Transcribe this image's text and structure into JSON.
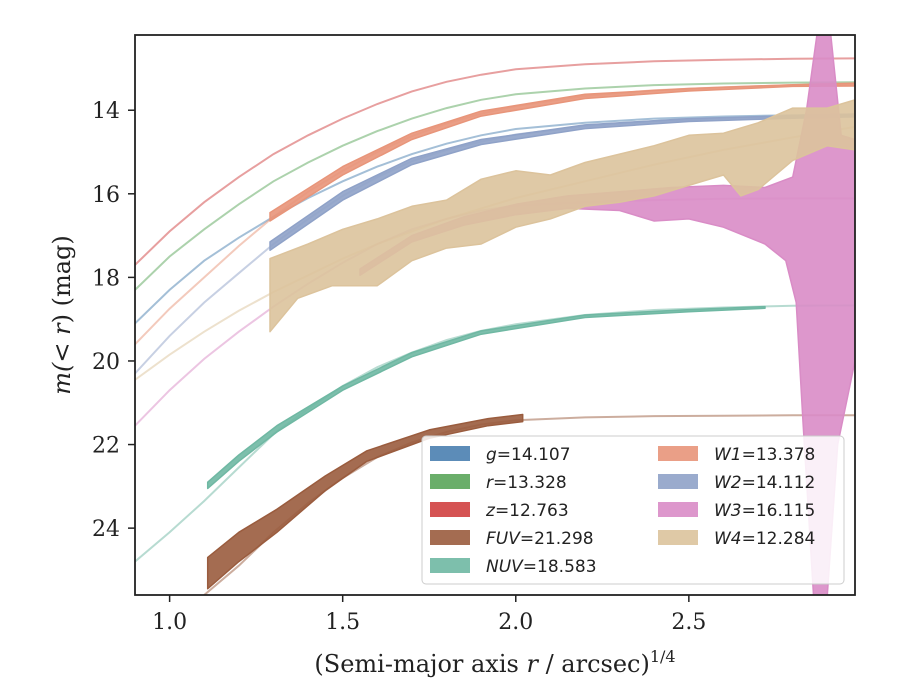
{
  "chart_data": {
    "type": "area",
    "xlabel_prefix": "(Semi-major axis ",
    "xlabel_var": "r",
    "xlabel_suffix": " / arcsec)",
    "xlabel_exp": "1/4",
    "ylabel_prefix": "m(< ",
    "ylabel_var": "r",
    "ylabel_suffix": ") (mag)",
    "xlim": [
      0.9,
      2.98
    ],
    "ylim": [
      25.6,
      12.2
    ],
    "y_inverted": true,
    "xticks": [
      1.0,
      1.5,
      2.0,
      2.5
    ],
    "xtick_labels": [
      "1.0",
      "1.5",
      "2.0",
      "2.5"
    ],
    "yticks": [
      14,
      16,
      18,
      20,
      22,
      24
    ],
    "ytick_labels": [
      "14",
      "16",
      "18",
      "20",
      "22",
      "24"
    ],
    "legend_position": "lower-right",
    "series": [
      {
        "band": "g",
        "value": "14.107",
        "color": "#4a7fb0",
        "faint": [
          [
            0.9,
            19.1
          ],
          [
            1.0,
            18.3
          ],
          [
            1.1,
            17.6
          ],
          [
            1.2,
            17.05
          ],
          [
            1.3,
            16.55
          ],
          [
            1.4,
            16.1
          ],
          [
            1.5,
            15.7
          ],
          [
            1.6,
            15.35
          ],
          [
            1.7,
            15.05
          ],
          [
            1.8,
            14.8
          ],
          [
            1.9,
            14.6
          ],
          [
            2.0,
            14.45
          ],
          [
            2.2,
            14.3
          ],
          [
            2.4,
            14.2
          ],
          [
            2.6,
            14.15
          ],
          [
            2.8,
            14.12
          ],
          [
            2.98,
            14.1
          ]
        ],
        "band_upper": [],
        "band_lower": []
      },
      {
        "band": "r",
        "value": "13.328",
        "color": "#5aa55a",
        "faint": [
          [
            0.9,
            18.3
          ],
          [
            1.0,
            17.5
          ],
          [
            1.1,
            16.85
          ],
          [
            1.2,
            16.25
          ],
          [
            1.3,
            15.7
          ],
          [
            1.4,
            15.25
          ],
          [
            1.5,
            14.85
          ],
          [
            1.6,
            14.5
          ],
          [
            1.7,
            14.2
          ],
          [
            1.8,
            13.95
          ],
          [
            1.9,
            13.75
          ],
          [
            2.0,
            13.62
          ],
          [
            2.2,
            13.48
          ],
          [
            2.4,
            13.4
          ],
          [
            2.6,
            13.36
          ],
          [
            2.8,
            13.34
          ],
          [
            2.98,
            13.33
          ]
        ],
        "band_upper": [],
        "band_lower": []
      },
      {
        "band": "z",
        "value": "12.763",
        "color": "#d04040",
        "faint": [
          [
            0.9,
            17.7
          ],
          [
            1.0,
            16.9
          ],
          [
            1.1,
            16.2
          ],
          [
            1.2,
            15.6
          ],
          [
            1.3,
            15.05
          ],
          [
            1.4,
            14.6
          ],
          [
            1.5,
            14.2
          ],
          [
            1.6,
            13.85
          ],
          [
            1.7,
            13.55
          ],
          [
            1.8,
            13.32
          ],
          [
            1.9,
            13.15
          ],
          [
            2.0,
            13.02
          ],
          [
            2.2,
            12.9
          ],
          [
            2.4,
            12.83
          ],
          [
            2.6,
            12.79
          ],
          [
            2.8,
            12.77
          ],
          [
            2.98,
            12.76
          ]
        ],
        "band_upper": [],
        "band_lower": []
      },
      {
        "band": "FUV",
        "value": "21.298",
        "color": "#9a5c3e",
        "faint": [
          [
            0.9,
            26.8
          ],
          [
            1.0,
            26.2
          ],
          [
            1.1,
            25.6
          ],
          [
            1.2,
            24.9
          ],
          [
            1.3,
            24.1
          ],
          [
            1.4,
            23.4
          ],
          [
            1.5,
            22.8
          ],
          [
            1.6,
            22.3
          ],
          [
            1.7,
            21.95
          ],
          [
            1.8,
            21.7
          ],
          [
            1.9,
            21.52
          ],
          [
            2.0,
            21.42
          ],
          [
            2.2,
            21.35
          ],
          [
            2.4,
            21.32
          ],
          [
            2.6,
            21.31
          ],
          [
            2.8,
            21.3
          ],
          [
            2.98,
            21.3
          ]
        ],
        "band_upper": [
          [
            1.11,
            24.7
          ],
          [
            1.2,
            24.1
          ],
          [
            1.31,
            23.55
          ],
          [
            1.45,
            22.75
          ],
          [
            1.57,
            22.15
          ],
          [
            1.75,
            21.65
          ],
          [
            1.92,
            21.38
          ],
          [
            2.02,
            21.28
          ]
        ],
        "band_lower": [
          [
            1.11,
            25.45
          ],
          [
            1.2,
            24.8
          ],
          [
            1.31,
            24.1
          ],
          [
            1.45,
            23.1
          ],
          [
            1.57,
            22.4
          ],
          [
            1.75,
            21.85
          ],
          [
            1.92,
            21.55
          ],
          [
            2.02,
            21.45
          ]
        ]
      },
      {
        "band": "NUV",
        "value": "18.583",
        "color": "#6fb8a3",
        "faint": [
          [
            0.9,
            24.8
          ],
          [
            1.0,
            24.1
          ],
          [
            1.1,
            23.35
          ],
          [
            1.2,
            22.55
          ],
          [
            1.3,
            21.75
          ],
          [
            1.4,
            21.15
          ],
          [
            1.5,
            20.6
          ],
          [
            1.6,
            20.15
          ],
          [
            1.7,
            19.8
          ],
          [
            1.8,
            19.5
          ],
          [
            1.9,
            19.28
          ],
          [
            2.0,
            19.12
          ],
          [
            2.2,
            18.9
          ],
          [
            2.4,
            18.78
          ],
          [
            2.6,
            18.72
          ],
          [
            2.8,
            18.68
          ],
          [
            2.98,
            18.67
          ]
        ],
        "band_upper": [
          [
            1.11,
            22.9
          ],
          [
            1.2,
            22.25
          ],
          [
            1.31,
            21.55
          ],
          [
            1.5,
            20.6
          ],
          [
            1.7,
            19.8
          ],
          [
            1.9,
            19.28
          ],
          [
            2.2,
            18.9
          ],
          [
            2.5,
            18.77
          ],
          [
            2.72,
            18.7
          ]
        ],
        "band_lower": [
          [
            1.11,
            23.05
          ],
          [
            1.2,
            22.4
          ],
          [
            1.31,
            21.7
          ],
          [
            1.5,
            20.7
          ],
          [
            1.7,
            19.9
          ],
          [
            1.9,
            19.36
          ],
          [
            2.2,
            18.96
          ],
          [
            2.5,
            18.82
          ],
          [
            2.72,
            18.74
          ]
        ]
      },
      {
        "band": "W1",
        "value": "13.378",
        "color": "#e8957a",
        "faint": [
          [
            0.9,
            19.6
          ],
          [
            1.0,
            18.75
          ],
          [
            1.1,
            18.0
          ],
          [
            1.2,
            17.25
          ],
          [
            1.3,
            16.55
          ],
          [
            1.4,
            15.95
          ],
          [
            1.5,
            15.45
          ],
          [
            1.6,
            15.0
          ],
          [
            1.7,
            14.62
          ],
          [
            1.8,
            14.32
          ],
          [
            1.9,
            14.08
          ],
          [
            2.0,
            13.9
          ],
          [
            2.2,
            13.66
          ],
          [
            2.4,
            13.52
          ],
          [
            2.6,
            13.45
          ],
          [
            2.8,
            13.4
          ],
          [
            2.98,
            13.38
          ]
        ],
        "band_upper": [
          [
            1.29,
            16.45
          ],
          [
            1.5,
            15.35
          ],
          [
            1.7,
            14.55
          ],
          [
            1.9,
            14.02
          ],
          [
            2.2,
            13.62
          ],
          [
            2.5,
            13.48
          ],
          [
            2.8,
            13.39
          ],
          [
            2.98,
            13.35
          ]
        ],
        "band_lower": [
          [
            1.29,
            16.65
          ],
          [
            1.5,
            15.55
          ],
          [
            1.7,
            14.7
          ],
          [
            1.9,
            14.14
          ],
          [
            2.2,
            13.72
          ],
          [
            2.5,
            13.54
          ],
          [
            2.8,
            13.43
          ],
          [
            2.98,
            13.42
          ]
        ]
      },
      {
        "band": "W2",
        "value": "14.112",
        "color": "#8fa2c8",
        "faint": [
          [
            0.9,
            20.3
          ],
          [
            1.0,
            19.4
          ],
          [
            1.1,
            18.6
          ],
          [
            1.2,
            17.9
          ],
          [
            1.3,
            17.2
          ],
          [
            1.4,
            16.6
          ],
          [
            1.5,
            16.05
          ],
          [
            1.6,
            15.6
          ],
          [
            1.7,
            15.22
          ],
          [
            1.8,
            14.95
          ],
          [
            1.9,
            14.75
          ],
          [
            2.0,
            14.58
          ],
          [
            2.2,
            14.38
          ],
          [
            2.4,
            14.26
          ],
          [
            2.6,
            14.19
          ],
          [
            2.8,
            14.15
          ],
          [
            2.98,
            14.12
          ]
        ],
        "band_upper": [
          [
            1.29,
            17.15
          ],
          [
            1.5,
            15.95
          ],
          [
            1.7,
            15.15
          ],
          [
            1.9,
            14.7
          ],
          [
            2.2,
            14.35
          ],
          [
            2.5,
            14.2
          ],
          [
            2.8,
            14.13
          ],
          [
            2.98,
            14.09
          ]
        ],
        "band_lower": [
          [
            1.29,
            17.35
          ],
          [
            1.5,
            16.15
          ],
          [
            1.7,
            15.3
          ],
          [
            1.9,
            14.82
          ],
          [
            2.2,
            14.44
          ],
          [
            2.5,
            14.27
          ],
          [
            2.8,
            14.19
          ],
          [
            2.98,
            14.16
          ]
        ]
      },
      {
        "band": "W3",
        "value": "16.115",
        "color": "#d98cc6",
        "faint": [
          [
            0.9,
            21.55
          ],
          [
            1.0,
            20.7
          ],
          [
            1.1,
            19.95
          ],
          [
            1.2,
            19.3
          ],
          [
            1.3,
            18.7
          ],
          [
            1.4,
            18.15
          ],
          [
            1.5,
            17.65
          ],
          [
            1.6,
            17.2
          ],
          [
            1.7,
            16.85
          ],
          [
            1.8,
            16.6
          ],
          [
            1.9,
            16.4
          ],
          [
            2.0,
            16.28
          ],
          [
            2.2,
            16.2
          ],
          [
            2.4,
            16.15
          ],
          [
            2.6,
            16.12
          ],
          [
            2.8,
            16.11
          ],
          [
            2.98,
            16.11
          ]
        ],
        "band_upper": [
          [
            1.55,
            17.8
          ],
          [
            1.7,
            17.0
          ],
          [
            1.85,
            16.55
          ],
          [
            2.0,
            16.25
          ],
          [
            2.15,
            16.05
          ],
          [
            2.3,
            15.95
          ],
          [
            2.45,
            15.85
          ],
          [
            2.6,
            15.8
          ],
          [
            2.72,
            15.85
          ],
          [
            2.8,
            15.6
          ],
          [
            2.84,
            14.0
          ],
          [
            2.87,
            12.2
          ],
          [
            2.91,
            12.2
          ],
          [
            2.94,
            14.6
          ],
          [
            2.98,
            14.7
          ]
        ],
        "band_lower": [
          [
            1.55,
            17.95
          ],
          [
            1.7,
            17.15
          ],
          [
            1.85,
            16.75
          ],
          [
            2.0,
            16.5
          ],
          [
            2.15,
            16.35
          ],
          [
            2.3,
            16.4
          ],
          [
            2.4,
            16.65
          ],
          [
            2.5,
            16.6
          ],
          [
            2.6,
            16.8
          ],
          [
            2.72,
            17.2
          ],
          [
            2.78,
            17.6
          ],
          [
            2.81,
            18.6
          ],
          [
            2.83,
            21.5
          ],
          [
            2.86,
            25.6
          ],
          [
            2.9,
            25.6
          ],
          [
            2.93,
            22.0
          ],
          [
            2.98,
            20.0
          ]
        ]
      },
      {
        "band": "W4",
        "value": "12.284",
        "color": "#dcc39c",
        "faint": [
          [
            0.9,
            20.45
          ],
          [
            1.0,
            19.85
          ],
          [
            1.1,
            19.3
          ],
          [
            1.2,
            18.8
          ],
          [
            1.3,
            18.35
          ],
          [
            1.4,
            17.95
          ],
          [
            1.5,
            17.55
          ],
          [
            1.6,
            17.2
          ],
          [
            1.7,
            16.9
          ],
          [
            1.8,
            16.6
          ],
          [
            1.9,
            16.35
          ],
          [
            2.0,
            16.1
          ],
          [
            2.2,
            15.7
          ],
          [
            2.4,
            15.3
          ],
          [
            2.6,
            14.95
          ],
          [
            2.8,
            14.65
          ],
          [
            2.98,
            14.4
          ]
        ],
        "band_upper": [
          [
            1.29,
            17.55
          ],
          [
            1.4,
            17.2
          ],
          [
            1.5,
            16.85
          ],
          [
            1.6,
            16.6
          ],
          [
            1.7,
            16.3
          ],
          [
            1.8,
            16.15
          ],
          [
            1.9,
            15.65
          ],
          [
            2.0,
            15.45
          ],
          [
            2.1,
            15.55
          ],
          [
            2.2,
            15.25
          ],
          [
            2.3,
            15.05
          ],
          [
            2.4,
            14.85
          ],
          [
            2.5,
            14.6
          ],
          [
            2.6,
            14.55
          ],
          [
            2.7,
            14.3
          ],
          [
            2.8,
            13.95
          ],
          [
            2.9,
            13.95
          ],
          [
            2.98,
            13.75
          ]
        ],
        "band_lower": [
          [
            1.29,
            19.3
          ],
          [
            1.37,
            18.5
          ],
          [
            1.47,
            18.2
          ],
          [
            1.6,
            18.2
          ],
          [
            1.7,
            17.6
          ],
          [
            1.8,
            17.3
          ],
          [
            1.9,
            17.2
          ],
          [
            2.0,
            16.8
          ],
          [
            2.1,
            16.6
          ],
          [
            2.2,
            16.3
          ],
          [
            2.3,
            16.2
          ],
          [
            2.4,
            16.05
          ],
          [
            2.5,
            15.8
          ],
          [
            2.6,
            15.55
          ],
          [
            2.65,
            16.05
          ],
          [
            2.7,
            15.9
          ],
          [
            2.8,
            15.2
          ],
          [
            2.9,
            14.85
          ],
          [
            2.98,
            14.95
          ]
        ]
      }
    ]
  }
}
